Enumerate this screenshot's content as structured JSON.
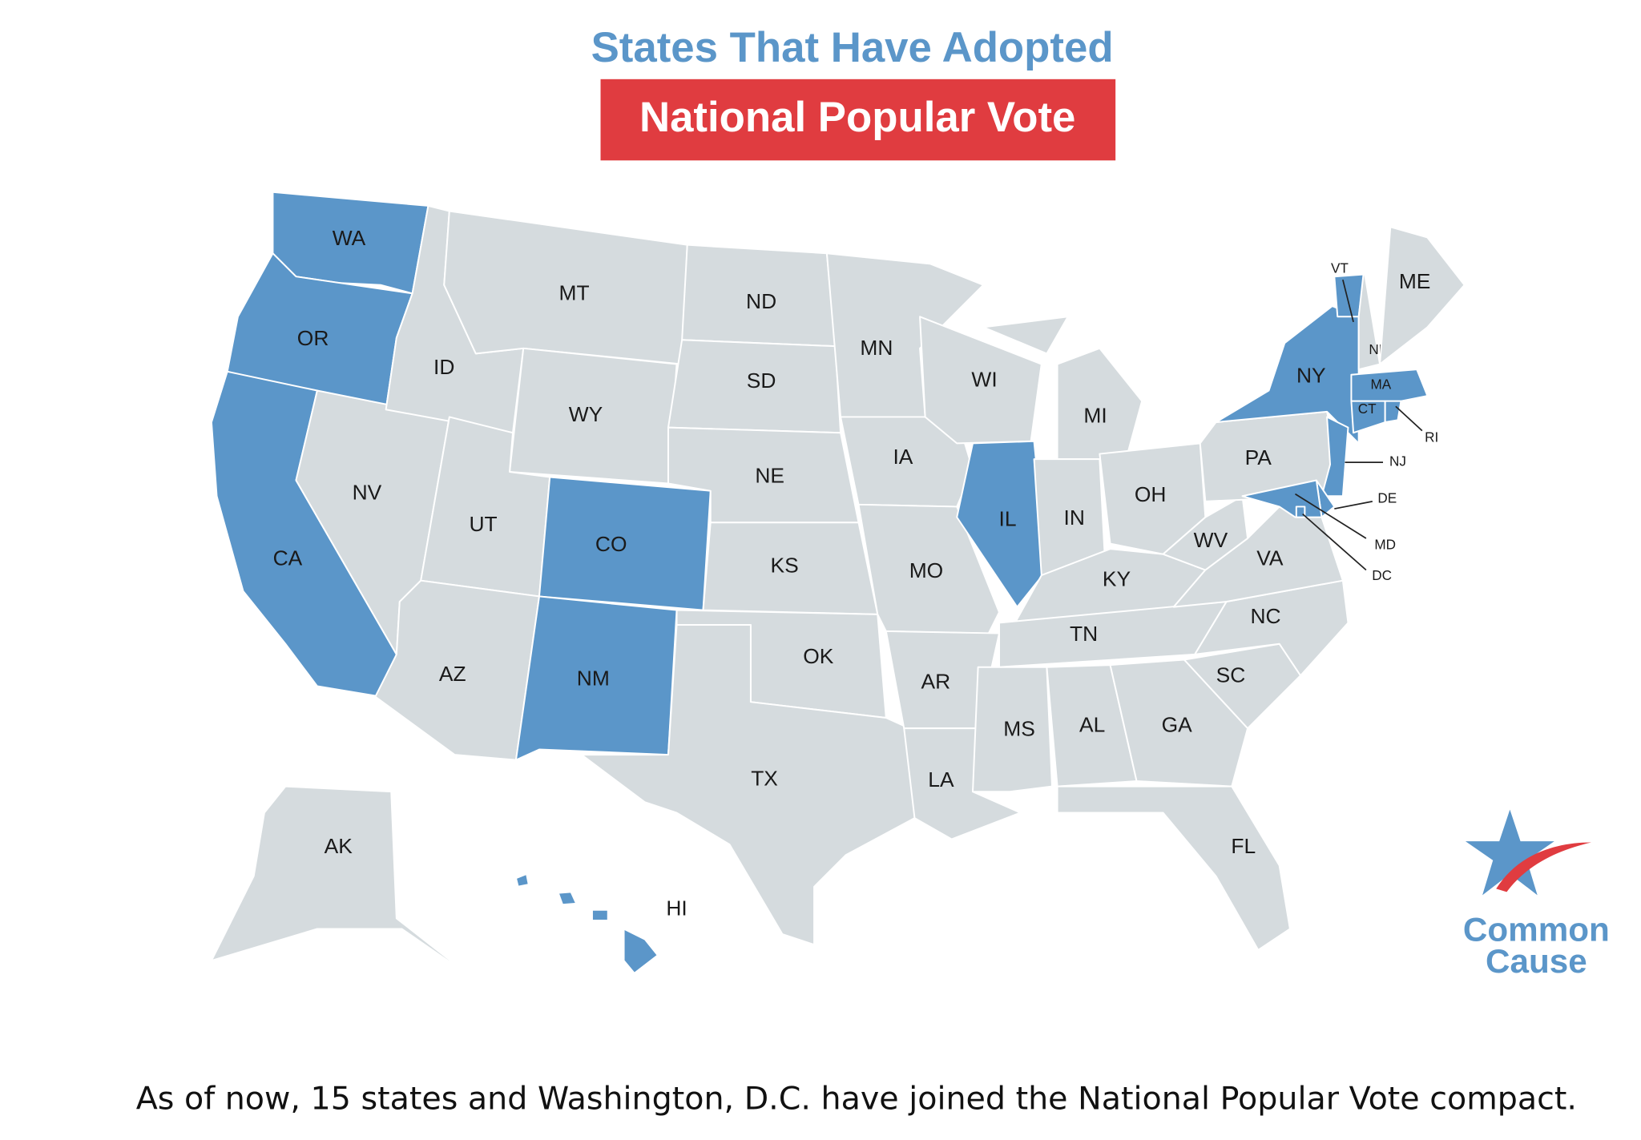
{
  "title": "States That Have Adopted",
  "subtitle": "National Popular Vote",
  "colors": {
    "adopted": "#5b96c9",
    "other": "#d5dbde"
  },
  "states": [
    {
      "label": "WA",
      "adopted": true
    },
    {
      "label": "OR",
      "adopted": true
    },
    {
      "label": "CA",
      "adopted": true
    },
    {
      "label": "NV",
      "adopted": false
    },
    {
      "label": "ID",
      "adopted": false
    },
    {
      "label": "MT",
      "adopted": false
    },
    {
      "label": "WY",
      "adopted": false
    },
    {
      "label": "UT",
      "adopted": false
    },
    {
      "label": "AZ",
      "adopted": false
    },
    {
      "label": "CO",
      "adopted": true
    },
    {
      "label": "NM",
      "adopted": true
    },
    {
      "label": "ND",
      "adopted": false
    },
    {
      "label": "SD",
      "adopted": false
    },
    {
      "label": "NE",
      "adopted": false
    },
    {
      "label": "KS",
      "adopted": false
    },
    {
      "label": "OK",
      "adopted": false
    },
    {
      "label": "TX",
      "adopted": false
    },
    {
      "label": "MN",
      "adopted": false
    },
    {
      "label": "IA",
      "adopted": false
    },
    {
      "label": "MO",
      "adopted": false
    },
    {
      "label": "AR",
      "adopted": false
    },
    {
      "label": "LA",
      "adopted": false
    },
    {
      "label": "WI",
      "adopted": false
    },
    {
      "label": "IL",
      "adopted": true
    },
    {
      "label": "MI",
      "adopted": false
    },
    {
      "label": "IN",
      "adopted": false
    },
    {
      "label": "OH",
      "adopted": false
    },
    {
      "label": "KY",
      "adopted": false
    },
    {
      "label": "TN",
      "adopted": false
    },
    {
      "label": "MS",
      "adopted": false
    },
    {
      "label": "AL",
      "adopted": false
    },
    {
      "label": "GA",
      "adopted": false
    },
    {
      "label": "FL",
      "adopted": false
    },
    {
      "label": "SC",
      "adopted": false
    },
    {
      "label": "NC",
      "adopted": false
    },
    {
      "label": "VA",
      "adopted": false
    },
    {
      "label": "WV",
      "adopted": false
    },
    {
      "label": "PA",
      "adopted": false
    },
    {
      "label": "NY",
      "adopted": true
    },
    {
      "label": "VT",
      "adopted": true
    },
    {
      "label": "NH",
      "adopted": false
    },
    {
      "label": "ME",
      "adopted": false
    },
    {
      "label": "MA",
      "adopted": true
    },
    {
      "label": "CT",
      "adopted": true
    },
    {
      "label": "RI",
      "adopted": true
    },
    {
      "label": "NJ",
      "adopted": true
    },
    {
      "label": "DE",
      "adopted": true
    },
    {
      "label": "MD",
      "adopted": true
    },
    {
      "label": "DC",
      "adopted": true
    },
    {
      "label": "AK",
      "adopted": false
    },
    {
      "label": "HI",
      "adopted": true
    }
  ],
  "logo": {
    "line1": "Common",
    "line2": "Cause"
  },
  "caption": "As of now, 15 states and Washington, D.C. have joined the National Popular Vote compact."
}
